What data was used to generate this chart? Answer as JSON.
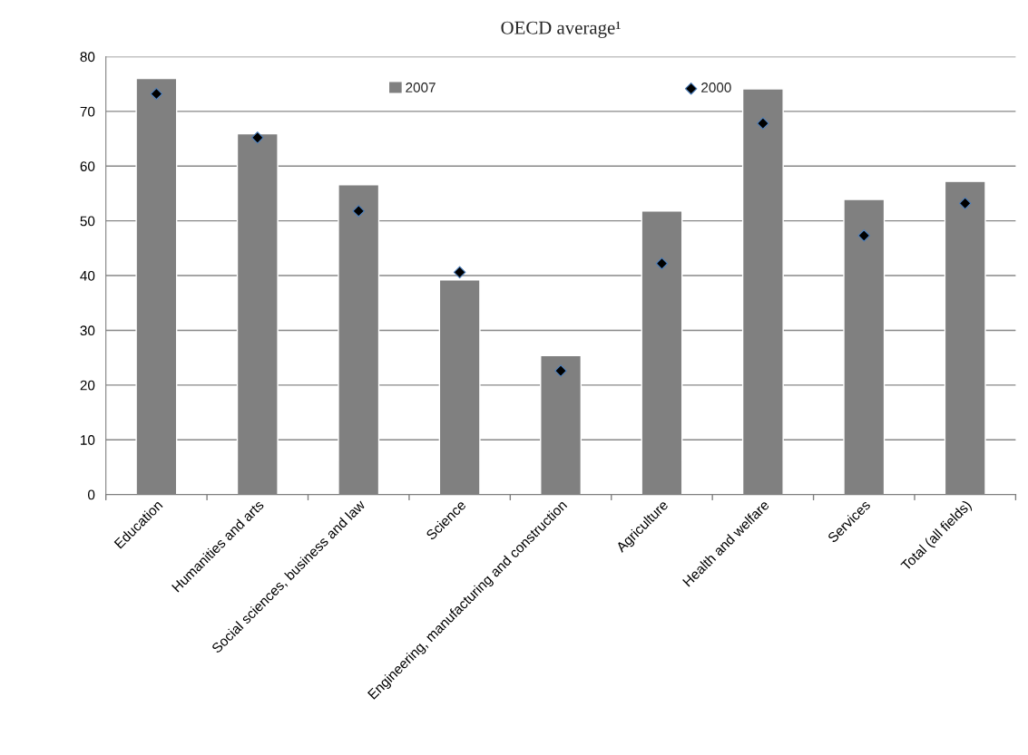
{
  "chart_data": {
    "type": "bar",
    "title": "OECD average¹",
    "categories": [
      "Education",
      "Humanities and arts",
      "Social sciences, business and law",
      "Science",
      "Engineering, manufacturing and construction",
      "Agriculture",
      "Health and welfare",
      "Services",
      "Total (all fields)"
    ],
    "series": [
      {
        "name": "2007",
        "color": "#808080",
        "values": [
          76.0,
          65.9,
          56.6,
          39.2,
          25.4,
          51.8,
          74.1,
          53.9,
          57.2
        ]
      },
      {
        "name": "2000",
        "type": "scatter",
        "marker": "diamond",
        "color": "#000000",
        "values": [
          73.2,
          65.2,
          51.8,
          40.6,
          22.6,
          42.2,
          67.8,
          47.3,
          53.2
        ]
      }
    ],
    "ylim": [
      0,
      80
    ],
    "yticks": [
      0,
      10,
      20,
      30,
      40,
      50,
      60,
      70,
      80
    ],
    "grid": "y",
    "legend": "top"
  }
}
